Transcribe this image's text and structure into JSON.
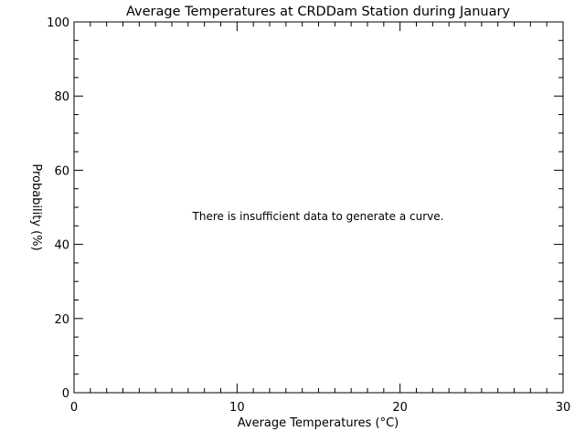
{
  "chart_data": {
    "type": "line",
    "title": "Average Temperatures at CRDDam Station during January",
    "xlabel": "Average Temperatures (°C)",
    "ylabel": "Probability (%)",
    "xlim": [
      0,
      30
    ],
    "ylim": [
      0,
      100
    ],
    "x_ticks": [
      0,
      10,
      20,
      30
    ],
    "y_ticks": [
      0,
      20,
      40,
      60,
      80,
      100
    ],
    "x_tick_labels": [
      "0",
      "10",
      "20",
      "30"
    ],
    "y_tick_labels": [
      "0",
      "20",
      "40",
      "60",
      "80",
      "100"
    ],
    "grid": false,
    "legend": "none",
    "series": [],
    "annotation": "There is insufficient data to generate a curve."
  }
}
